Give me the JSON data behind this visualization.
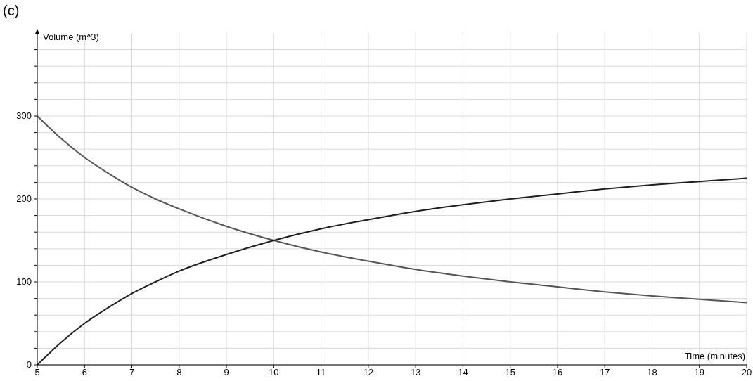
{
  "chart_data": {
    "type": "line",
    "title": "(c)",
    "xlabel": "Time (minutes)",
    "ylabel": "Volume  (m^3)",
    "x": [
      5,
      5.5,
      6,
      6.5,
      7,
      7.5,
      8,
      9,
      10,
      11,
      12,
      13,
      14,
      15,
      16,
      17,
      18,
      19,
      20
    ],
    "series": [
      {
        "color": "#555555",
        "values": [
          300,
          273,
          250,
          231,
          214,
          200,
          188,
          167,
          150,
          136,
          125,
          115,
          107,
          100,
          94,
          88,
          83,
          79,
          75
        ]
      },
      {
        "color": "#1e1e1e",
        "values": [
          0,
          27,
          50,
          69,
          86,
          100,
          113,
          133,
          150,
          164,
          175,
          185,
          193,
          200,
          206,
          212,
          217,
          221,
          225
        ]
      }
    ],
    "xlim": [
      5,
      20
    ],
    "xticks": [
      5,
      6,
      7,
      8,
      9,
      10,
      11,
      12,
      13,
      14,
      15,
      16,
      17,
      18,
      19,
      20
    ],
    "ylim": [
      0,
      400
    ],
    "yticks": [
      0,
      {
        "value": 20,
        "label": null
      },
      {
        "value": 40,
        "label": null
      },
      {
        "value": 60,
        "label": null
      },
      {
        "value": 80,
        "label": null
      },
      100,
      {
        "value": 120,
        "label": null
      },
      {
        "value": 140,
        "label": null
      },
      {
        "value": 160,
        "label": null
      },
      {
        "value": 180,
        "label": null
      },
      200,
      {
        "value": 220,
        "label": null
      },
      {
        "value": 240,
        "label": null
      },
      {
        "value": 260,
        "label": null
      },
      {
        "value": 280,
        "label": null
      },
      300,
      {
        "value": 320,
        "label": null
      },
      {
        "value": 340,
        "label": null
      },
      {
        "value": 360,
        "label": null
      },
      {
        "value": 380,
        "label": null
      }
    ],
    "grid": true,
    "marker": "none",
    "line_style": "solid"
  }
}
